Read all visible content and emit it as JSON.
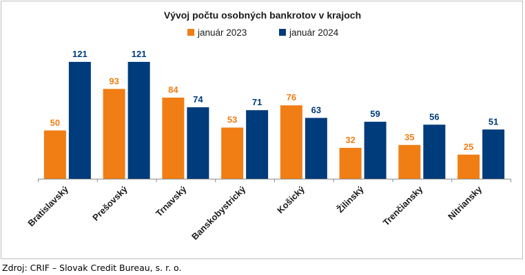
{
  "chart_data": {
    "type": "bar",
    "title": "Vývoj počtu osobných bankrotov v krajoch",
    "categories": [
      "Bratislavský",
      "Prešovský",
      "Trnavský",
      "Banskobystrický",
      "Košický",
      "Žilinský",
      "Trenčiansky",
      "Nitriansky"
    ],
    "series": [
      {
        "name": "január 2023",
        "color": "#f07e14",
        "values": [
          50,
          93,
          84,
          53,
          76,
          32,
          35,
          25
        ]
      },
      {
        "name": "január 2024",
        "color": "#003b7b",
        "values": [
          121,
          121,
          74,
          71,
          63,
          59,
          56,
          51
        ]
      }
    ],
    "ylim": [
      0,
      121
    ],
    "grid": false,
    "legend_position": "top-center",
    "data_labels": true
  },
  "source": "Zdroj: CRIF – Slovak Credit Bureau, s. r. o."
}
